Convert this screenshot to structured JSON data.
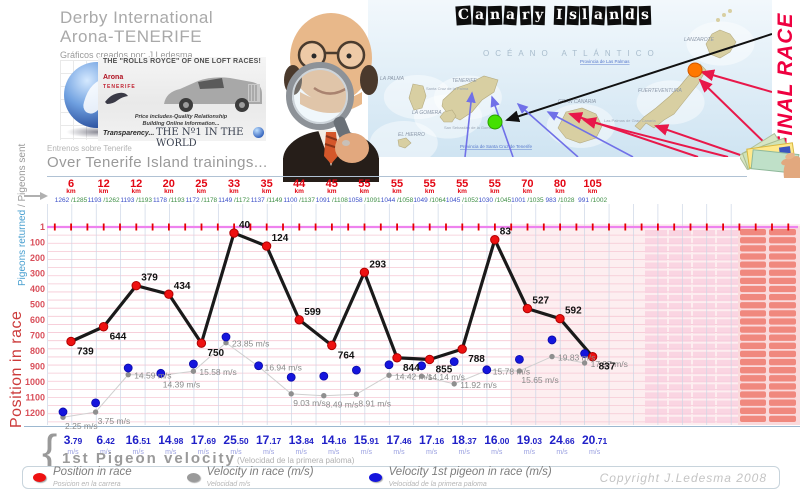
{
  "header": {
    "title_line1": "Derby International",
    "title_line2": "Arona-TENERIFE",
    "credit": "Gráficos creados por: J.Ledesma",
    "left_axis_top_blue": "Pigeons returned",
    "left_axis_top_gray": " / Pigeons sent",
    "left_axis_bottom": "Position in race",
    "banner": {
      "headline": "THE \"ROLLS ROYCE\" OF ONE LOFT RACES!",
      "logo_top": "Arona",
      "logo_bottom": "TENERIFE",
      "tagline1": "Price includes-Quality Relationship",
      "tagline2": "Building Online Information...",
      "tagline3": "Transparency...",
      "tagline4": "THE Nº1 IN THE WORLD"
    },
    "map": {
      "title": "Canary Islands",
      "ocean": "OCÉANO ATLÁNTICO",
      "province_1": "Provincia de Las Palmas",
      "province_2": "Provincia de Santa Cruz de Tenerife",
      "islands": [
        "LA PALMA",
        "TENERIFE",
        "LA GOMERA",
        "EL HIERRO",
        "GRAN CANARIA",
        "FUERTEVENTURA",
        "LANZAROTE"
      ],
      "towns": [
        "Santa Cruz de la Palma",
        "San Sebastián de la Gomera",
        "Las Palmas de Gran Canaria"
      ]
    },
    "final_race": "FINAL RACE"
  },
  "trainings": {
    "subtitle": "Entrenos sobre Tenerife",
    "title": "Over Tenerife Island trainings...",
    "unit_km": "km",
    "count_separator": "/"
  },
  "chart_data": {
    "type": "line",
    "title": "Over Tenerife Island trainings...",
    "x_unit": "km",
    "categories_km": [
      6,
      12,
      12,
      20,
      25,
      33,
      35,
      44,
      45,
      55,
      55,
      55,
      55,
      55,
      70,
      80,
      105
    ],
    "pigeons_returned": [
      1262,
      1193,
      1193,
      1178,
      1172,
      1149,
      1137,
      1100,
      1091,
      1058,
      1044,
      1049,
      1045,
      1030,
      1001,
      983,
      991
    ],
    "pigeons_sent": [
      1285,
      1262,
      1193,
      1193,
      1178,
      1172,
      1149,
      1137,
      1108,
      1091,
      1058,
      1064,
      1052,
      1045,
      1035,
      1028,
      1002
    ],
    "series": [
      {
        "name": "Position in race",
        "color": "#ee1111",
        "values": [
          739,
          644,
          379,
          434,
          750,
          40,
          124,
          599,
          764,
          293,
          844,
          855,
          788,
          83,
          527,
          592,
          837
        ]
      },
      {
        "name": "Velocity in race (m/s)",
        "color": "#8f8f8f",
        "unit": "m/s",
        "values": [
          "2.25",
          "3.75",
          "14.59",
          "14.39",
          "15.58",
          "23.85",
          "16.94",
          "9.03",
          "8.49",
          "8.91",
          "14.42",
          "14.14",
          "11.92",
          "15.78",
          "15.65",
          "19.83",
          "17.97"
        ]
      },
      {
        "name": "Velocity 1st pigeon in race (m/s)",
        "color": "#1515dd",
        "unit": "m/s",
        "values": [
          "3.79",
          "6.42",
          "16.51",
          "14.98",
          "17.69",
          "25.50",
          "17.17",
          "13.84",
          "14.16",
          "15.91",
          "17.46",
          "17.16",
          "18.37",
          "16.00",
          "19.03",
          "24.66",
          "20.71"
        ]
      }
    ],
    "y_axis": {
      "label": "Position in race",
      "ticks": [
        1,
        100,
        200,
        300,
        400,
        500,
        600,
        700,
        800,
        900,
        1000,
        1100,
        1200
      ],
      "inverted": true,
      "range": [
        1,
        1250
      ]
    },
    "legend_position": "bottom",
    "grid": true
  },
  "first_pigeon": {
    "label": "1st Pigeon velocity",
    "sublabel": "(Velocidad de la primera paloma)",
    "unit": "m/s"
  },
  "legend": [
    {
      "label": "Position in race",
      "sublabel": "Posicion en la carrera",
      "color": "#ee1111"
    },
    {
      "label": "Velocity in race (m/s)",
      "sublabel": "Velocidad m/s",
      "color": "#9a9a9a"
    },
    {
      "label": "Velocity 1st pigeon in race (m/s)",
      "sublabel": "Velocidad de la primera paloma",
      "color": "#1515dd"
    }
  ],
  "copyright": "Copyright J.Ledesma 2008",
  "colors": {
    "accent_red": "#e30613",
    "count_returned": "#3c50c8",
    "count_sent": "#3f8f46",
    "velocity_blue": "#2020c8",
    "ms_lavender": "#9aa0e0",
    "grid_v": "#ccd6e6",
    "grid_h": "#f6c8d4",
    "top_line": "#ee82ee",
    "tick_red": "#e60000",
    "wash": "#fdeef0",
    "stripe": "#f9cede",
    "block": "#f0887e",
    "block_bg": "#fadadc",
    "y_tick_label": "#d94f5a",
    "line_black": "#1a1a1a",
    "line_gray": "#cfcfcf"
  }
}
